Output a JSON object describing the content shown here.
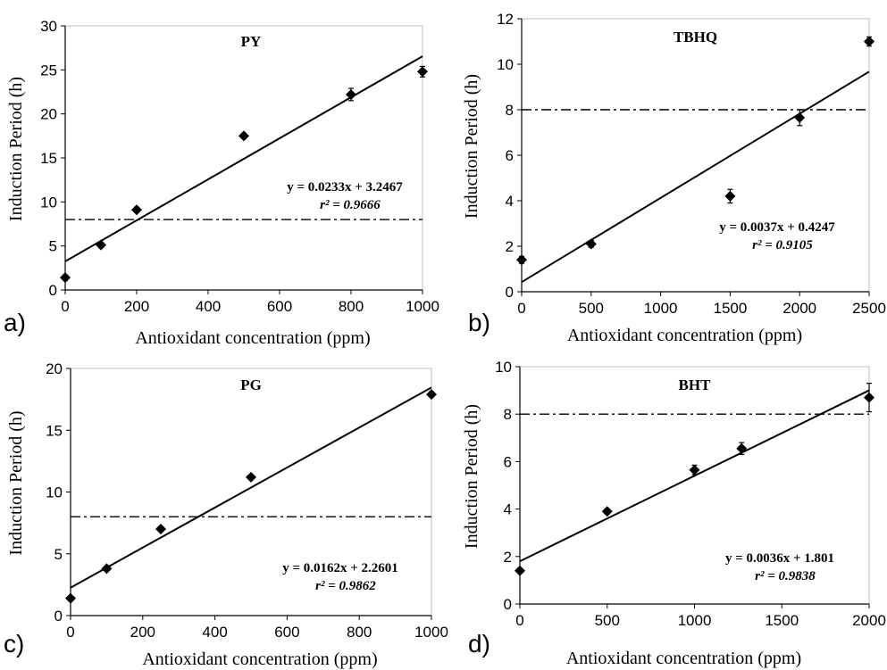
{
  "panel_letters": [
    "a)",
    "b)",
    "c)",
    "d)"
  ],
  "chart_data": [
    {
      "type": "scatter",
      "title": "PY",
      "xlabel": "Antioxidant concentration (ppm)",
      "ylabel": "Induction Period (h)",
      "xlim": [
        0,
        1000
      ],
      "ylim": [
        0,
        30
      ],
      "xticks": [
        0,
        200,
        400,
        600,
        800,
        1000
      ],
      "yticks": [
        0,
        5,
        10,
        15,
        20,
        25,
        30
      ],
      "points": [
        {
          "x": 0,
          "y": 1.4,
          "err": 0.3
        },
        {
          "x": 100,
          "y": 5.1,
          "err": 0.3
        },
        {
          "x": 200,
          "y": 9.1,
          "err": 0.3
        },
        {
          "x": 500,
          "y": 17.5,
          "err": 0.3
        },
        {
          "x": 800,
          "y": 22.2,
          "err": 0.7
        },
        {
          "x": 1000,
          "y": 24.8,
          "err": 0.6
        }
      ],
      "trendline": {
        "slope": 0.0233,
        "intercept": 3.2467
      },
      "equation": "y = 0.0233x + 3.2467",
      "r2_label": "r² = 0.9666",
      "reference_line_y": 8,
      "grid": false,
      "legend": "none"
    },
    {
      "type": "scatter",
      "title": "TBHQ",
      "xlabel": "Antioxidant concentration (ppm)",
      "ylabel": "Induction Period (h)",
      "xlim": [
        0,
        2500
      ],
      "ylim": [
        0,
        12
      ],
      "xticks": [
        0,
        500,
        1000,
        1500,
        2000,
        2500
      ],
      "yticks": [
        0,
        2,
        4,
        6,
        8,
        10,
        12
      ],
      "points": [
        {
          "x": 0,
          "y": 1.4,
          "err": 0.15
        },
        {
          "x": 500,
          "y": 2.1,
          "err": 0.15
        },
        {
          "x": 1500,
          "y": 4.2,
          "err": 0.3
        },
        {
          "x": 2000,
          "y": 7.65,
          "err": 0.35
        },
        {
          "x": 2500,
          "y": 11.0,
          "err": 0.2
        }
      ],
      "trendline": {
        "slope": 0.0037,
        "intercept": 0.4247
      },
      "equation": "y = 0.0037x + 0.4247",
      "r2_label": "r² = 0.9105",
      "reference_line_y": 8,
      "grid": false,
      "legend": "none"
    },
    {
      "type": "scatter",
      "title": "PG",
      "xlabel": "Antioxidant concentration (ppm)",
      "ylabel": "Induction Period (h)",
      "xlim": [
        0,
        1000
      ],
      "ylim": [
        0,
        20
      ],
      "xticks": [
        0,
        200,
        400,
        600,
        800,
        1000
      ],
      "yticks": [
        0,
        5,
        10,
        15,
        20
      ],
      "points": [
        {
          "x": 0,
          "y": 1.4,
          "err": 0.15
        },
        {
          "x": 100,
          "y": 3.8,
          "err": 0.15
        },
        {
          "x": 250,
          "y": 7.0,
          "err": 0.2
        },
        {
          "x": 500,
          "y": 11.2,
          "err": 0.2
        },
        {
          "x": 1000,
          "y": 17.9,
          "err": 0.2
        }
      ],
      "trendline": {
        "slope": 0.0162,
        "intercept": 2.2601
      },
      "equation": "y = 0.0162x + 2.2601",
      "r2_label": "r² = 0.9862",
      "reference_line_y": 8,
      "grid": false,
      "legend": "none"
    },
    {
      "type": "scatter",
      "title": "BHT",
      "xlabel": "Antioxidant concentration (ppm)",
      "ylabel": "Induction Period (h)",
      "xlim": [
        0,
        2000
      ],
      "ylim": [
        0,
        10
      ],
      "xticks": [
        0,
        500,
        1000,
        1500,
        2000
      ],
      "yticks": [
        0,
        2,
        4,
        6,
        8,
        10
      ],
      "points": [
        {
          "x": 0,
          "y": 1.4,
          "err": 0.1
        },
        {
          "x": 500,
          "y": 3.9,
          "err": 0.1
        },
        {
          "x": 1000,
          "y": 5.65,
          "err": 0.2
        },
        {
          "x": 1270,
          "y": 6.55,
          "err": 0.25
        },
        {
          "x": 2000,
          "y": 8.7,
          "err": 0.6
        }
      ],
      "trendline": {
        "slope": 0.0036,
        "intercept": 1.801
      },
      "equation": "y = 0.0036x + 1.801",
      "r2_label": "r² = 0.9838",
      "reference_line_y": 8,
      "grid": false,
      "legend": "none"
    }
  ]
}
